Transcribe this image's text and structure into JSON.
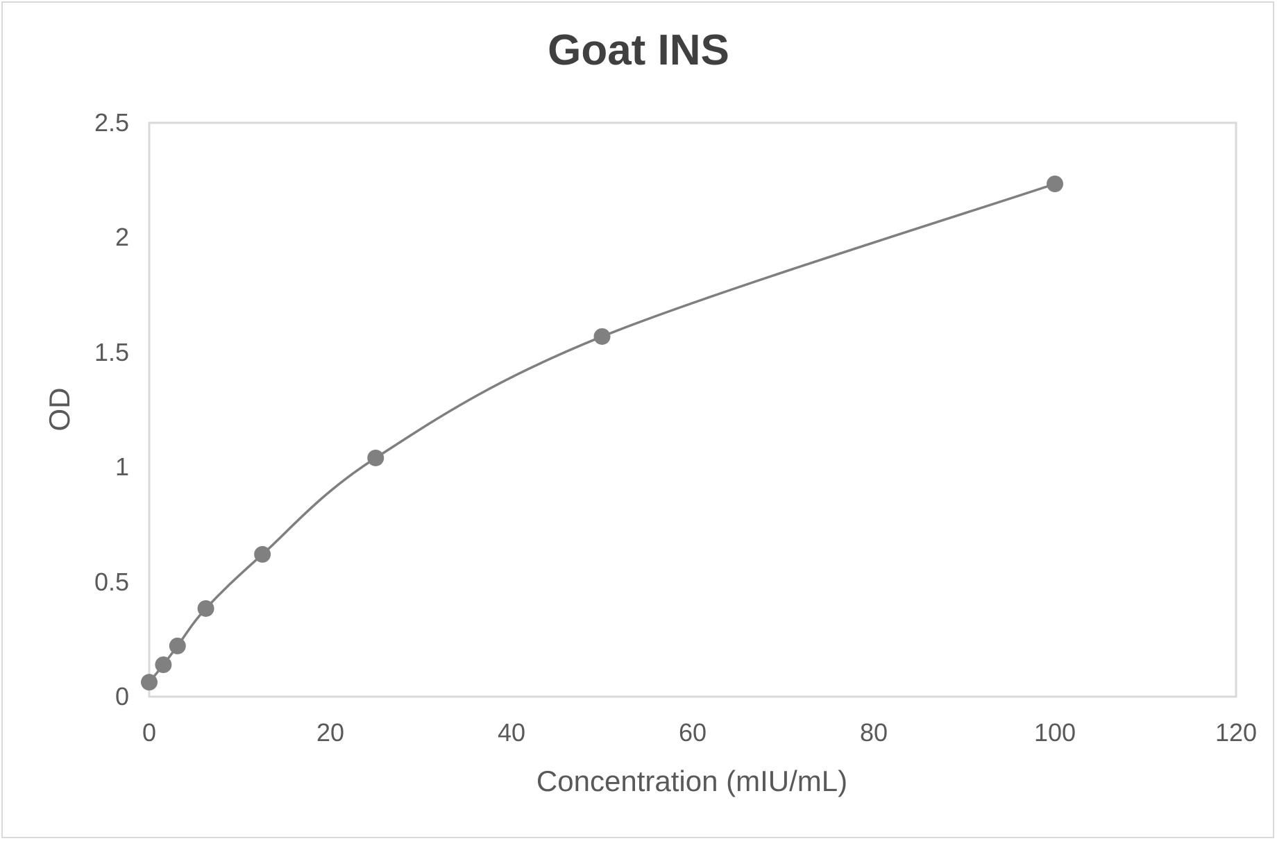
{
  "chart": {
    "title": "Goat INS",
    "xlabel": "Concentration (mIU/mL)",
    "ylabel": "OD",
    "xticks": [
      "0",
      "20",
      "40",
      "60",
      "80",
      "100",
      "120"
    ],
    "yticks": [
      "0",
      "0.5",
      "1",
      "1.5",
      "2",
      "2.5"
    ]
  },
  "colors": {
    "line": "#7f7f7f",
    "marker": "#808080",
    "plot_border": "#d9d9d9",
    "text": "#595959",
    "title": "#404040"
  },
  "chart_data": {
    "type": "line",
    "title": "Goat INS",
    "xlabel": "Concentration (mIU/mL)",
    "ylabel": "OD",
    "xlim": [
      0,
      120
    ],
    "ylim": [
      0,
      2.5
    ],
    "x_ticks": [
      0,
      20,
      40,
      60,
      80,
      100,
      120
    ],
    "y_ticks": [
      0,
      0.5,
      1,
      1.5,
      2,
      2.5
    ],
    "grid": false,
    "legend": null,
    "smoothed": true,
    "markers": true,
    "series": [
      {
        "name": "Goat INS",
        "x": [
          0,
          1.5625,
          3.125,
          6.25,
          12.5,
          25,
          50,
          100
        ],
        "y": [
          0.063,
          0.139,
          0.221,
          0.384,
          0.62,
          1.04,
          1.569,
          2.234
        ]
      }
    ]
  }
}
